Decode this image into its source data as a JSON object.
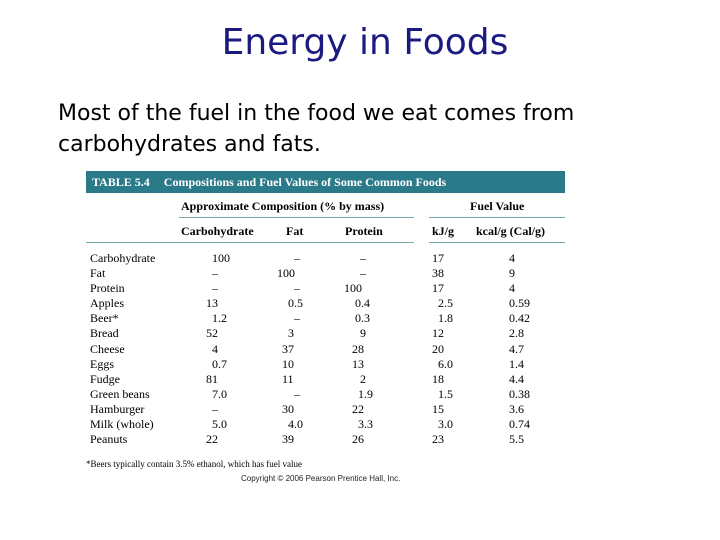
{
  "slide": {
    "title": "Energy in Foods",
    "intro": "Most of the fuel in the food we eat comes from carbohydrates and fats."
  },
  "table": {
    "number": "TABLE 5.4",
    "caption": "Compositions and Fuel Values of Some Common Foods",
    "group_header_composition": "Approximate Composition (% by mass)",
    "group_header_fuel": "Fuel Value",
    "columns": [
      "Carbohydrate",
      "Fat",
      "Protein",
      "kJ/g",
      "kcal/g (Cal/g)"
    ],
    "rows": [
      {
        "food": "Carbohydrate",
        "carb": "100",
        "fat": "–",
        "protein": "–",
        "kj": "17",
        "kcal": "4"
      },
      {
        "food": "Fat",
        "carb": "–",
        "fat": "100",
        "protein": "–",
        "kj": "38",
        "kcal": "9"
      },
      {
        "food": "Protein",
        "carb": "–",
        "fat": "–",
        "protein": "100",
        "kj": "17",
        "kcal": "4"
      },
      {
        "food": "Apples",
        "carb": "13",
        "fat": "0.5",
        "protein": "0.4",
        "kj": "2.5",
        "kcal": "0.59"
      },
      {
        "food": "Beer*",
        "carb": "1.2",
        "fat": "–",
        "protein": "0.3",
        "kj": "1.8",
        "kcal": "0.42"
      },
      {
        "food": "Bread",
        "carb": "52",
        "fat": "3",
        "protein": "9",
        "kj": "12",
        "kcal": "2.8"
      },
      {
        "food": "Cheese",
        "carb": "4",
        "fat": "37",
        "protein": "28",
        "kj": "20",
        "kcal": "4.7"
      },
      {
        "food": "Eggs",
        "carb": "0.7",
        "fat": "10",
        "protein": "13",
        "kj": "6.0",
        "kcal": "1.4"
      },
      {
        "food": "Fudge",
        "carb": "81",
        "fat": "11",
        "protein": "2",
        "kj": "18",
        "kcal": "4.4"
      },
      {
        "food": "Green beans",
        "carb": "7.0",
        "fat": "–",
        "protein": "1.9",
        "kj": "1.5",
        "kcal": "0.38"
      },
      {
        "food": "Hamburger",
        "carb": "–",
        "fat": "30",
        "protein": "22",
        "kj": "15",
        "kcal": "3.6"
      },
      {
        "food": "Milk (whole)",
        "carb": "5.0",
        "fat": "4.0",
        "protein": "3.3",
        "kj": "3.0",
        "kcal": "0.74"
      },
      {
        "food": "Peanuts",
        "carb": "22",
        "fat": "39",
        "protein": "26",
        "kj": "23",
        "kcal": "5.5"
      }
    ],
    "footnote": "*Beers typically contain 3.5% ethanol, which has fuel value",
    "copyright": "Copyright © 2006 Pearson Prentice Hall, Inc."
  },
  "colors": {
    "title": "#1a1a80",
    "caption_bar": "#2b7a8a"
  }
}
